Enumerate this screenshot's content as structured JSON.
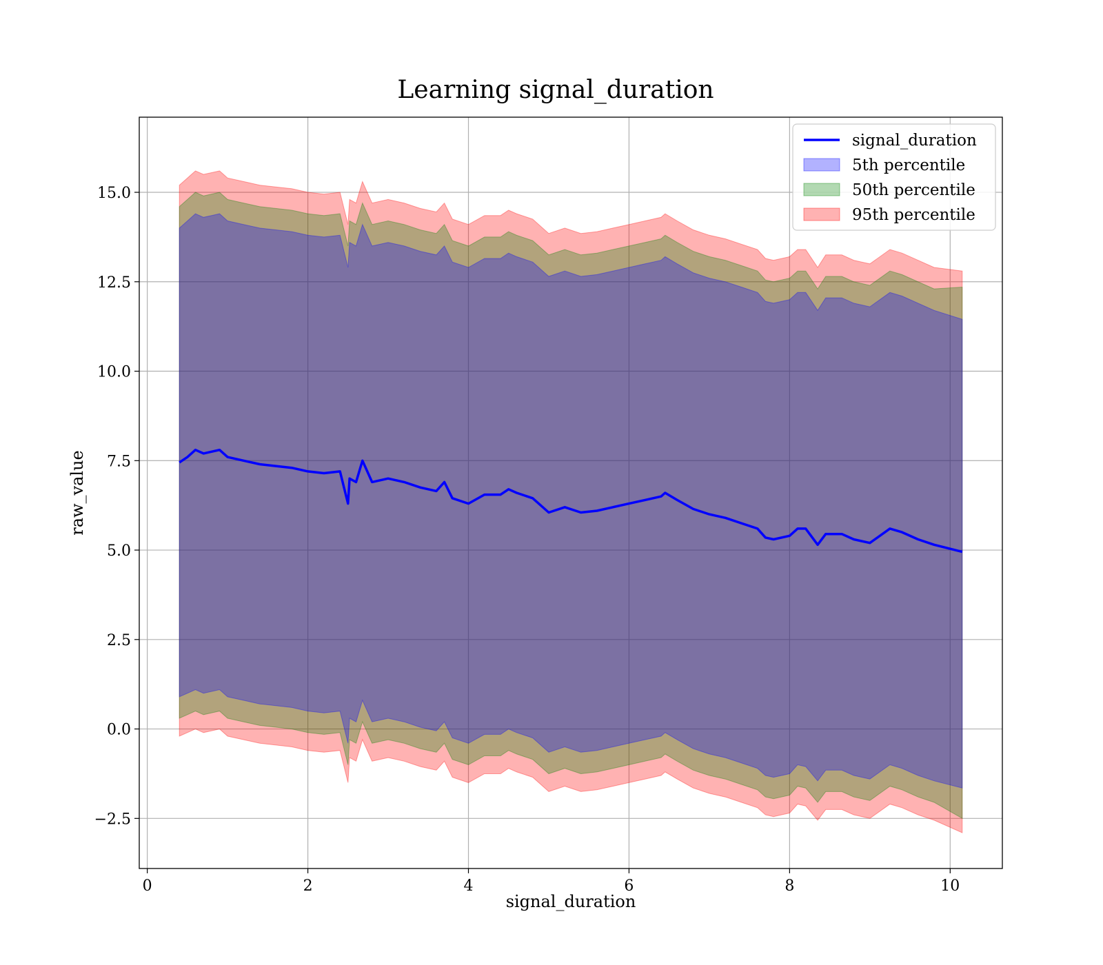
{
  "chart_data": {
    "type": "line",
    "title": "Learning signal_duration",
    "xlabel": "signal_duration",
    "ylabel": "raw_value",
    "xlim": [
      -0.1,
      10.65
    ],
    "ylim": [
      -3.9,
      17.1
    ],
    "xticks": [
      0,
      2,
      4,
      6,
      8,
      10
    ],
    "xtick_labels": [
      "0",
      "2",
      "4",
      "6",
      "8",
      "10"
    ],
    "yticks": [
      -2.5,
      0.0,
      2.5,
      5.0,
      7.5,
      10.0,
      12.5,
      15.0
    ],
    "ytick_labels": [
      "−2.5",
      "0.0",
      "2.5",
      "5.0",
      "7.5",
      "10.0",
      "12.5",
      "15.0"
    ],
    "grid": true,
    "legend_position": "top-right",
    "x": [
      0.4,
      0.5,
      0.6,
      0.7,
      0.8,
      0.9,
      1.0,
      1.2,
      1.4,
      1.6,
      1.8,
      2.0,
      2.2,
      2.4,
      2.5,
      2.52,
      2.6,
      2.68,
      2.8,
      3.0,
      3.2,
      3.4,
      3.6,
      3.7,
      3.8,
      4.0,
      4.2,
      4.4,
      4.5,
      4.6,
      4.8,
      5.0,
      5.2,
      5.4,
      5.6,
      5.8,
      6.0,
      6.2,
      6.4,
      6.45,
      6.6,
      6.8,
      7.0,
      7.2,
      7.4,
      7.6,
      7.7,
      7.8,
      8.0,
      8.1,
      8.2,
      8.35,
      8.45,
      8.65,
      8.8,
      9.0,
      9.25,
      9.4,
      9.6,
      9.8,
      10.15
    ],
    "series": [
      {
        "name": "signal_duration",
        "kind": "line",
        "color": "#0000ff",
        "values": [
          7.45,
          7.6,
          7.8,
          7.7,
          7.75,
          7.8,
          7.6,
          7.5,
          7.4,
          7.35,
          7.3,
          7.2,
          7.15,
          7.2,
          6.3,
          7.0,
          6.9,
          7.5,
          6.9,
          7.0,
          6.9,
          6.75,
          6.65,
          6.9,
          6.45,
          6.3,
          6.55,
          6.55,
          6.7,
          6.6,
          6.45,
          6.05,
          6.2,
          6.05,
          6.1,
          6.2,
          6.3,
          6.4,
          6.5,
          6.6,
          6.4,
          6.15,
          6.0,
          5.9,
          5.75,
          5.6,
          5.35,
          5.3,
          5.4,
          5.6,
          5.6,
          5.15,
          5.45,
          5.45,
          5.3,
          5.2,
          5.6,
          5.5,
          5.3,
          5.15,
          4.95
        ]
      },
      {
        "name": "5th percentile",
        "kind": "band",
        "color": "#0000ff",
        "opacity": 0.3,
        "lower": [
          0.9,
          1.0,
          1.1,
          1.0,
          1.05,
          1.1,
          0.9,
          0.8,
          0.7,
          0.65,
          0.6,
          0.5,
          0.45,
          0.5,
          -0.4,
          0.3,
          0.2,
          0.8,
          0.2,
          0.3,
          0.2,
          0.05,
          -0.05,
          0.2,
          -0.25,
          -0.4,
          -0.15,
          -0.15,
          0.0,
          -0.1,
          -0.25,
          -0.65,
          -0.5,
          -0.65,
          -0.6,
          -0.5,
          -0.4,
          -0.3,
          -0.2,
          -0.1,
          -0.3,
          -0.55,
          -0.7,
          -0.8,
          -0.95,
          -1.1,
          -1.3,
          -1.35,
          -1.25,
          -1.0,
          -1.05,
          -1.45,
          -1.15,
          -1.15,
          -1.3,
          -1.4,
          -1.0,
          -1.1,
          -1.3,
          -1.45,
          -1.65
        ],
        "upper": [
          14.0,
          14.2,
          14.4,
          14.3,
          14.35,
          14.4,
          14.2,
          14.1,
          14.0,
          13.95,
          13.9,
          13.8,
          13.75,
          13.8,
          12.9,
          13.6,
          13.5,
          14.1,
          13.5,
          13.6,
          13.5,
          13.35,
          13.25,
          13.5,
          13.05,
          12.9,
          13.15,
          13.15,
          13.3,
          13.2,
          13.05,
          12.65,
          12.8,
          12.65,
          12.7,
          12.8,
          12.9,
          13.0,
          13.1,
          13.2,
          13.0,
          12.75,
          12.6,
          12.5,
          12.35,
          12.2,
          11.95,
          11.9,
          12.0,
          12.2,
          12.2,
          11.7,
          12.05,
          12.05,
          11.9,
          11.8,
          12.2,
          12.1,
          11.9,
          11.7,
          11.45
        ]
      },
      {
        "name": "50th percentile",
        "kind": "band",
        "color": "#008000",
        "opacity": 0.3,
        "lower": [
          0.3,
          0.4,
          0.5,
          0.4,
          0.45,
          0.5,
          0.3,
          0.2,
          0.1,
          0.05,
          0.0,
          -0.1,
          -0.15,
          -0.1,
          -1.0,
          -0.3,
          -0.4,
          0.2,
          -0.4,
          -0.3,
          -0.4,
          -0.55,
          -0.65,
          -0.4,
          -0.85,
          -1.0,
          -0.75,
          -0.75,
          -0.6,
          -0.7,
          -0.85,
          -1.25,
          -1.1,
          -1.25,
          -1.2,
          -1.1,
          -1.0,
          -0.9,
          -0.8,
          -0.7,
          -0.9,
          -1.15,
          -1.3,
          -1.4,
          -1.55,
          -1.7,
          -1.9,
          -1.95,
          -1.85,
          -1.6,
          -1.65,
          -2.05,
          -1.75,
          -1.75,
          -1.9,
          -2.0,
          -1.6,
          -1.7,
          -1.9,
          -2.05,
          -2.5
        ],
        "upper": [
          14.6,
          14.8,
          15.0,
          14.9,
          14.95,
          15.0,
          14.8,
          14.7,
          14.6,
          14.55,
          14.5,
          14.4,
          14.35,
          14.4,
          13.5,
          14.2,
          14.1,
          14.7,
          14.1,
          14.2,
          14.1,
          13.95,
          13.85,
          14.1,
          13.65,
          13.5,
          13.75,
          13.75,
          13.9,
          13.8,
          13.65,
          13.25,
          13.4,
          13.25,
          13.3,
          13.4,
          13.5,
          13.6,
          13.7,
          13.8,
          13.6,
          13.35,
          13.2,
          13.1,
          12.95,
          12.8,
          12.55,
          12.5,
          12.6,
          12.8,
          12.8,
          12.3,
          12.65,
          12.65,
          12.5,
          12.4,
          12.8,
          12.7,
          12.5,
          12.3,
          12.35
        ]
      },
      {
        "name": "95th percentile",
        "kind": "band",
        "color": "#ff0000",
        "opacity": 0.3,
        "lower": [
          -0.2,
          -0.1,
          0.0,
          -0.1,
          -0.05,
          0.0,
          -0.2,
          -0.3,
          -0.4,
          -0.45,
          -0.5,
          -0.6,
          -0.65,
          -0.6,
          -1.5,
          -0.8,
          -0.9,
          -0.3,
          -0.9,
          -0.8,
          -0.9,
          -1.05,
          -1.15,
          -0.9,
          -1.35,
          -1.5,
          -1.25,
          -1.25,
          -1.1,
          -1.2,
          -1.35,
          -1.75,
          -1.6,
          -1.75,
          -1.7,
          -1.6,
          -1.5,
          -1.4,
          -1.3,
          -1.2,
          -1.4,
          -1.65,
          -1.8,
          -1.9,
          -2.05,
          -2.2,
          -2.4,
          -2.45,
          -2.35,
          -2.1,
          -2.15,
          -2.55,
          -2.25,
          -2.25,
          -2.4,
          -2.5,
          -2.1,
          -2.2,
          -2.4,
          -2.55,
          -2.9
        ],
        "upper": [
          15.2,
          15.4,
          15.6,
          15.5,
          15.55,
          15.6,
          15.4,
          15.3,
          15.2,
          15.15,
          15.1,
          15.0,
          14.95,
          15.0,
          14.1,
          14.8,
          14.7,
          15.3,
          14.7,
          14.8,
          14.7,
          14.55,
          14.45,
          14.7,
          14.25,
          14.1,
          14.35,
          14.35,
          14.5,
          14.4,
          14.25,
          13.85,
          14.0,
          13.85,
          13.9,
          14.0,
          14.1,
          14.2,
          14.3,
          14.4,
          14.2,
          13.95,
          13.8,
          13.7,
          13.55,
          13.4,
          13.15,
          13.1,
          13.2,
          13.4,
          13.4,
          12.9,
          13.25,
          13.25,
          13.1,
          13.0,
          13.4,
          13.3,
          13.1,
          12.9,
          12.8
        ]
      }
    ]
  }
}
